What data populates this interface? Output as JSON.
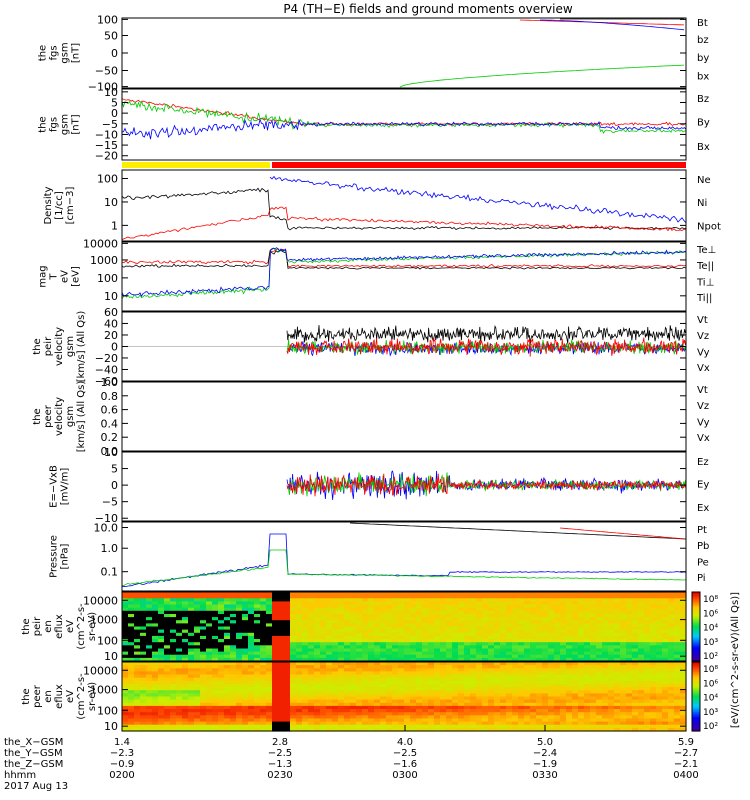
{
  "title": "P4 (TH−E) fields and ground moments overview",
  "xaxis": {
    "row_labels": [
      "the_X−GSM",
      "the_Y−GSM",
      "the_Z−GSM",
      "hhmm",
      "2017 Aug 13"
    ],
    "ticks": [
      {
        "x": "1.4",
        "y": "−2.3",
        "z": "−0.9",
        "t": "0200"
      },
      {
        "x": "2.8",
        "y": "−2.5",
        "z": "−1.3",
        "t": "0230"
      },
      {
        "x": "4.0",
        "y": "−2.5",
        "z": "−1.6",
        "t": "0300"
      },
      {
        "x": "5.0",
        "y": "−2.4",
        "z": "−1.9",
        "t": "0330"
      },
      {
        "x": "5.9",
        "y": "−2.7",
        "z": "−2.1",
        "t": "0400"
      }
    ]
  },
  "chart_data": [
    {
      "type": "line",
      "ylabel": [
        "the",
        "fgs",
        "gsm",
        "[nT]"
      ],
      "ylim": [
        -100,
        100
      ],
      "ticks": [
        "100",
        "50",
        "0",
        "−50",
        "−100"
      ],
      "series": [
        {
          "name": "Bt",
          "color": "#000000"
        },
        {
          "name": "bz",
          "color": "#ff0000"
        },
        {
          "name": "by",
          "color": "#00cc00"
        },
        {
          "name": "bx",
          "color": "#0000ff"
        }
      ]
    },
    {
      "type": "line",
      "ylabel": [
        "the",
        "fgs",
        "gsm",
        "[nT]"
      ],
      "ylim": [
        -22,
        12
      ],
      "ticks": [
        "10",
        "5",
        "0",
        "−5",
        "−10",
        "−15",
        "−20"
      ],
      "series": [
        {
          "name": "Bz",
          "color": "#ff0000"
        },
        {
          "name": "By",
          "color": "#00cc00"
        },
        {
          "name": "Bx",
          "color": "#0000ff"
        }
      ]
    },
    {
      "type": "line",
      "ylabel": [
        "Density",
        "[1/cc]",
        "[cm−3]"
      ],
      "ylim": [
        0.3,
        200
      ],
      "log": true,
      "ticks": [
        "100",
        "10",
        "1"
      ],
      "series": [
        {
          "name": "Ne",
          "color": "#ff0000"
        },
        {
          "name": "Ni",
          "color": "#000000"
        },
        {
          "name": "Npot",
          "color": "#0000ff"
        }
      ]
    },
    {
      "type": "line",
      "ylabel": [
        "mag",
        "T",
        "eV",
        "[eV]"
      ],
      "ylim": [
        3,
        12000
      ],
      "log": true,
      "ticks": [
        "10000",
        "1000",
        "100",
        "10"
      ],
      "series": [
        {
          "name": "Te⊥",
          "color": "#ff0000"
        },
        {
          "name": "Te||",
          "color": "#000000"
        },
        {
          "name": "Ti⊥",
          "color": "#0000ff"
        },
        {
          "name": "Ti||",
          "color": "#00cc00"
        }
      ]
    },
    {
      "type": "line",
      "ylabel": [
        "the",
        "peir",
        "velocity",
        "gsm",
        "[km/s] (All Qs)"
      ],
      "ylim": [
        -60,
        60
      ],
      "ticks": [
        "60",
        "40",
        "20",
        "0",
        "−20",
        "−40",
        "−60"
      ],
      "series": [
        {
          "name": "Vt",
          "color": "#000000"
        },
        {
          "name": "Vz",
          "color": "#ff0000"
        },
        {
          "name": "Vy",
          "color": "#00cc00"
        },
        {
          "name": "Vx",
          "color": "#0000ff"
        }
      ]
    },
    {
      "type": "line",
      "ylabel": [
        "the",
        "peer",
        "velocity",
        "gsm",
        "[km/s] (All Qs)"
      ],
      "ylim": [
        0,
        1
      ],
      "ticks": [
        "1.0",
        "0.8",
        "0.6",
        "0.4",
        "0.2",
        "0.0"
      ],
      "series": [
        {
          "name": "Vt",
          "color": "#000000"
        },
        {
          "name": "Vz",
          "color": "#ff0000"
        },
        {
          "name": "Vy",
          "color": "#00cc00"
        },
        {
          "name": "Vx",
          "color": "#0000ff"
        }
      ]
    },
    {
      "type": "line",
      "ylabel": [
        "E=−VxB",
        "[mV/m]"
      ],
      "ylim": [
        -12,
        10
      ],
      "ticks": [
        "10",
        "5",
        "0",
        "−5",
        "−10"
      ],
      "series": [
        {
          "name": "Ez",
          "color": "#ff0000"
        },
        {
          "name": "Ey",
          "color": "#00cc00"
        },
        {
          "name": "Ex",
          "color": "#0000ff"
        }
      ]
    },
    {
      "type": "line",
      "ylabel": [
        "Pressure",
        "[nPa]"
      ],
      "ylim": [
        0.02,
        30
      ],
      "log": true,
      "ticks": [
        "10.0",
        "1.0",
        "0.1"
      ],
      "series": [
        {
          "name": "Pt",
          "color": "#000000"
        },
        {
          "name": "Pb",
          "color": "#ff0000"
        },
        {
          "name": "Pe",
          "color": "#00cc00"
        },
        {
          "name": "Pi",
          "color": "#0000ff"
        }
      ]
    },
    {
      "type": "heatmap",
      "ylabel": [
        "the",
        "peir",
        "en",
        "eflux",
        "eV",
        "(cm^2-s-",
        "sr-eV)"
      ],
      "ylim": [
        5,
        20000
      ],
      "log": true,
      "ticks": [
        "10000",
        "1000",
        "100",
        "10"
      ]
    },
    {
      "type": "heatmap",
      "ylabel": [
        "the",
        "peer",
        "en",
        "eflux",
        "eV",
        "(cm^2-s-",
        "sr-eV)"
      ],
      "ylim": [
        5,
        20000
      ],
      "log": true,
      "ticks": [
        "10000",
        "1000",
        "100",
        "10"
      ]
    }
  ],
  "colorbar": {
    "label": "[eV/(cm^2-s-sr-eV)(All Qs)]",
    "ticks": [
      "10⁸",
      "10⁶",
      "10⁴",
      "10³",
      "10²"
    ]
  }
}
